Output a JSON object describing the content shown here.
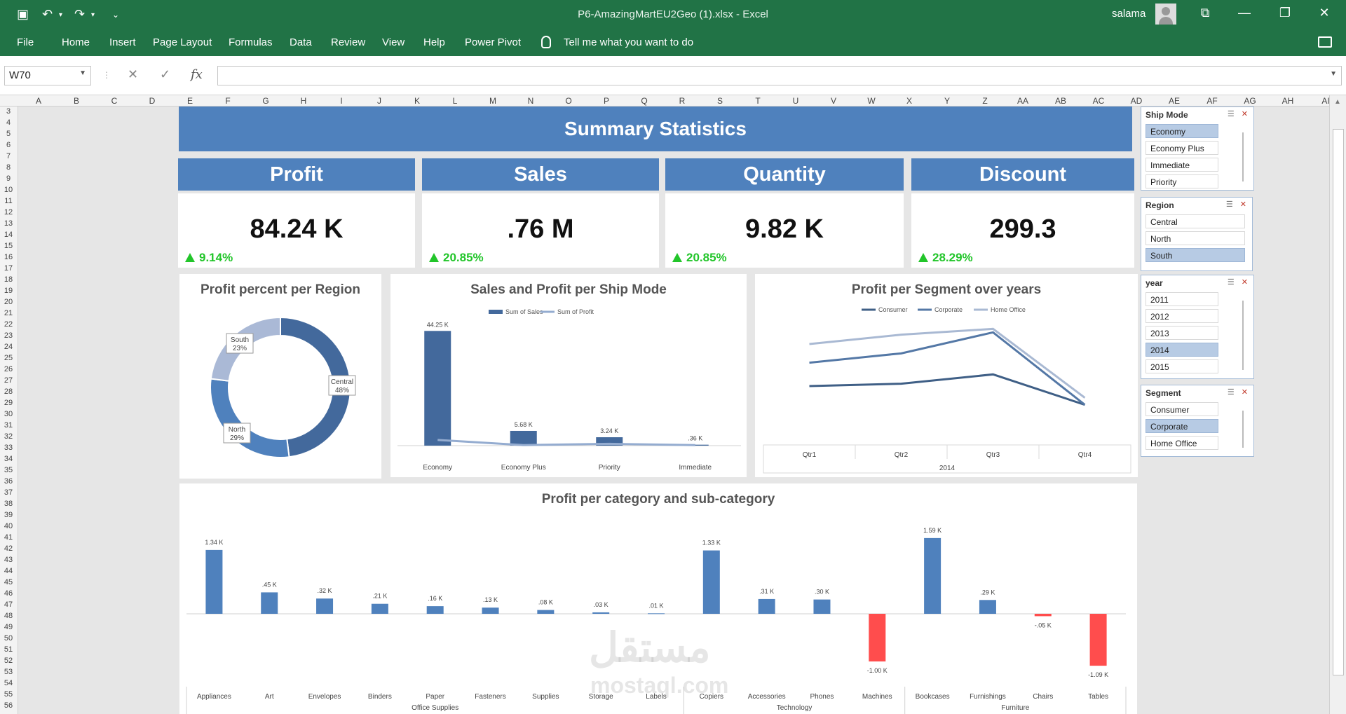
{
  "window": {
    "title": "P6-AmazingMartEU2Geo (1).xlsx  -  Excel",
    "user": "salama"
  },
  "ribbon": {
    "tabs": [
      "File",
      "Home",
      "Insert",
      "Page Layout",
      "Formulas",
      "Data",
      "Review",
      "View",
      "Help",
      "Power Pivot"
    ],
    "tell_me": "Tell me what you want to do"
  },
  "formula_bar": {
    "name_box": "W70",
    "formula": ""
  },
  "columns": [
    "A",
    "B",
    "C",
    "D",
    "E",
    "F",
    "G",
    "H",
    "I",
    "J",
    "K",
    "L",
    "M",
    "N",
    "O",
    "P",
    "Q",
    "R",
    "S",
    "T",
    "U",
    "V",
    "W",
    "X",
    "Y",
    "Z",
    "AA",
    "AB",
    "AC",
    "AD",
    "AE",
    "AF",
    "AG",
    "AH",
    "AI"
  ],
  "rows": [
    "3",
    "4",
    "5",
    "6",
    "7",
    "8",
    "9",
    "10",
    "11",
    "12",
    "13",
    "14",
    "15",
    "16",
    "17",
    "18",
    "19",
    "20",
    "21",
    "22",
    "23",
    "24",
    "25",
    "26",
    "27",
    "28",
    "29",
    "30",
    "31",
    "32",
    "33",
    "34",
    "35",
    "36",
    "37",
    "38",
    "39",
    "40",
    "41",
    "42",
    "43",
    "44",
    "45",
    "46",
    "47",
    "48",
    "49",
    "50",
    "51",
    "52",
    "53",
    "54",
    "55",
    "56"
  ],
  "dashboard": {
    "title": "Summary Statistics",
    "kpis": [
      {
        "label": "Profit",
        "value": "84.24 K",
        "delta": "9.14%"
      },
      {
        "label": "Sales",
        "value": ".76 M",
        "delta": "20.85%"
      },
      {
        "label": "Quantity",
        "value": "9.82 K",
        "delta": "20.85%"
      },
      {
        "label": "Discount",
        "value": "299.3",
        "delta": "28.29%"
      }
    ]
  },
  "slicers": {
    "ship_mode": {
      "title": "Ship Mode",
      "items": [
        "Economy",
        "Economy Plus",
        "Immediate",
        "Priority"
      ],
      "selected": [
        0
      ]
    },
    "region": {
      "title": "Region",
      "items": [
        "Central",
        "North",
        "South"
      ],
      "selected": [
        2
      ]
    },
    "year": {
      "title": "year",
      "items": [
        "2011",
        "2012",
        "2013",
        "2014",
        "2015"
      ],
      "selected": [
        3
      ]
    },
    "segment": {
      "title": "Segment",
      "items": [
        "Consumer",
        "Corporate",
        "Home Office"
      ],
      "selected": [
        1
      ]
    }
  },
  "colors": {
    "excel_green": "#217346",
    "accent_blue": "#4f81bd",
    "positive": "#22c52a",
    "negative": "#ff4d4d"
  },
  "chart_data": [
    {
      "type": "pie",
      "title": "Profit percent per Region",
      "categories": [
        "Central",
        "North",
        "South"
      ],
      "values": [
        48,
        29,
        23
      ],
      "labels": [
        "48%",
        "29%",
        "23%"
      ],
      "colors": [
        "#43699c",
        "#4f81bd",
        "#aab9d6"
      ]
    },
    {
      "type": "bar",
      "title": "Sales and Profit per Ship Mode",
      "categories": [
        "Economy",
        "Economy Plus",
        "Priority",
        "Immediate"
      ],
      "series": [
        {
          "name": "Sum of Sales",
          "values": [
            44.25,
            5.68,
            3.24,
            0.36
          ],
          "labels": [
            "44.25 K",
            "5.68 K",
            "3.24 K",
            ".36 K"
          ]
        },
        {
          "name": "Sum of Profit",
          "values": [
            2.2,
            0.2,
            0.7,
            0.2
          ]
        }
      ],
      "ylim": [
        0,
        50
      ],
      "legend": "top"
    },
    {
      "type": "line",
      "title": "Profit per Segment over years",
      "categories": [
        "Qtr1",
        "Qtr2",
        "Qtr3",
        "Qtr4"
      ],
      "group_label": "2014",
      "series": [
        {
          "name": "Consumer",
          "values": [
            2.0,
            2.2,
            3.0,
            0.4
          ]
        },
        {
          "name": "Corporate",
          "values": [
            4.0,
            4.8,
            6.6,
            0.4
          ]
        },
        {
          "name": "Home Office",
          "values": [
            5.6,
            6.4,
            6.9,
            1.0
          ]
        }
      ],
      "ylim": [
        -1,
        8
      ],
      "legend": "top"
    },
    {
      "type": "bar",
      "title": "Profit per category and sub-category",
      "categories": [
        "Appliances",
        "Art",
        "Envelopes",
        "Binders",
        "Paper",
        "Fasteners",
        "Supplies",
        "Storage",
        "Labels",
        "Copiers",
        "Accessories",
        "Phones",
        "Machines",
        "Bookcases",
        "Furnishings",
        "Chairs",
        "Tables"
      ],
      "groups": [
        {
          "name": "Office Supplies",
          "count": 9
        },
        {
          "name": "Technology",
          "count": 4
        },
        {
          "name": "Furniture",
          "count": 4
        }
      ],
      "values": [
        1.34,
        0.45,
        0.32,
        0.21,
        0.16,
        0.13,
        0.08,
        0.03,
        0.01,
        1.33,
        0.31,
        0.3,
        -1.0,
        1.59,
        0.29,
        -0.05,
        -1.09
      ],
      "labels": [
        "1.34 K",
        ".45 K",
        ".32 K",
        ".21 K",
        ".16 K",
        ".13 K",
        ".08 K",
        ".03 K",
        ".01 K",
        "1.33 K",
        ".31 K",
        ".30 K",
        "-1.00 K",
        "1.59 K",
        ".29 K",
        "-.05 K",
        "-1.09 K"
      ],
      "ylim": [
        -1.2,
        1.8
      ]
    }
  ],
  "watermark": {
    "arabic": "مستقل",
    "latin": "mostaql.com"
  }
}
